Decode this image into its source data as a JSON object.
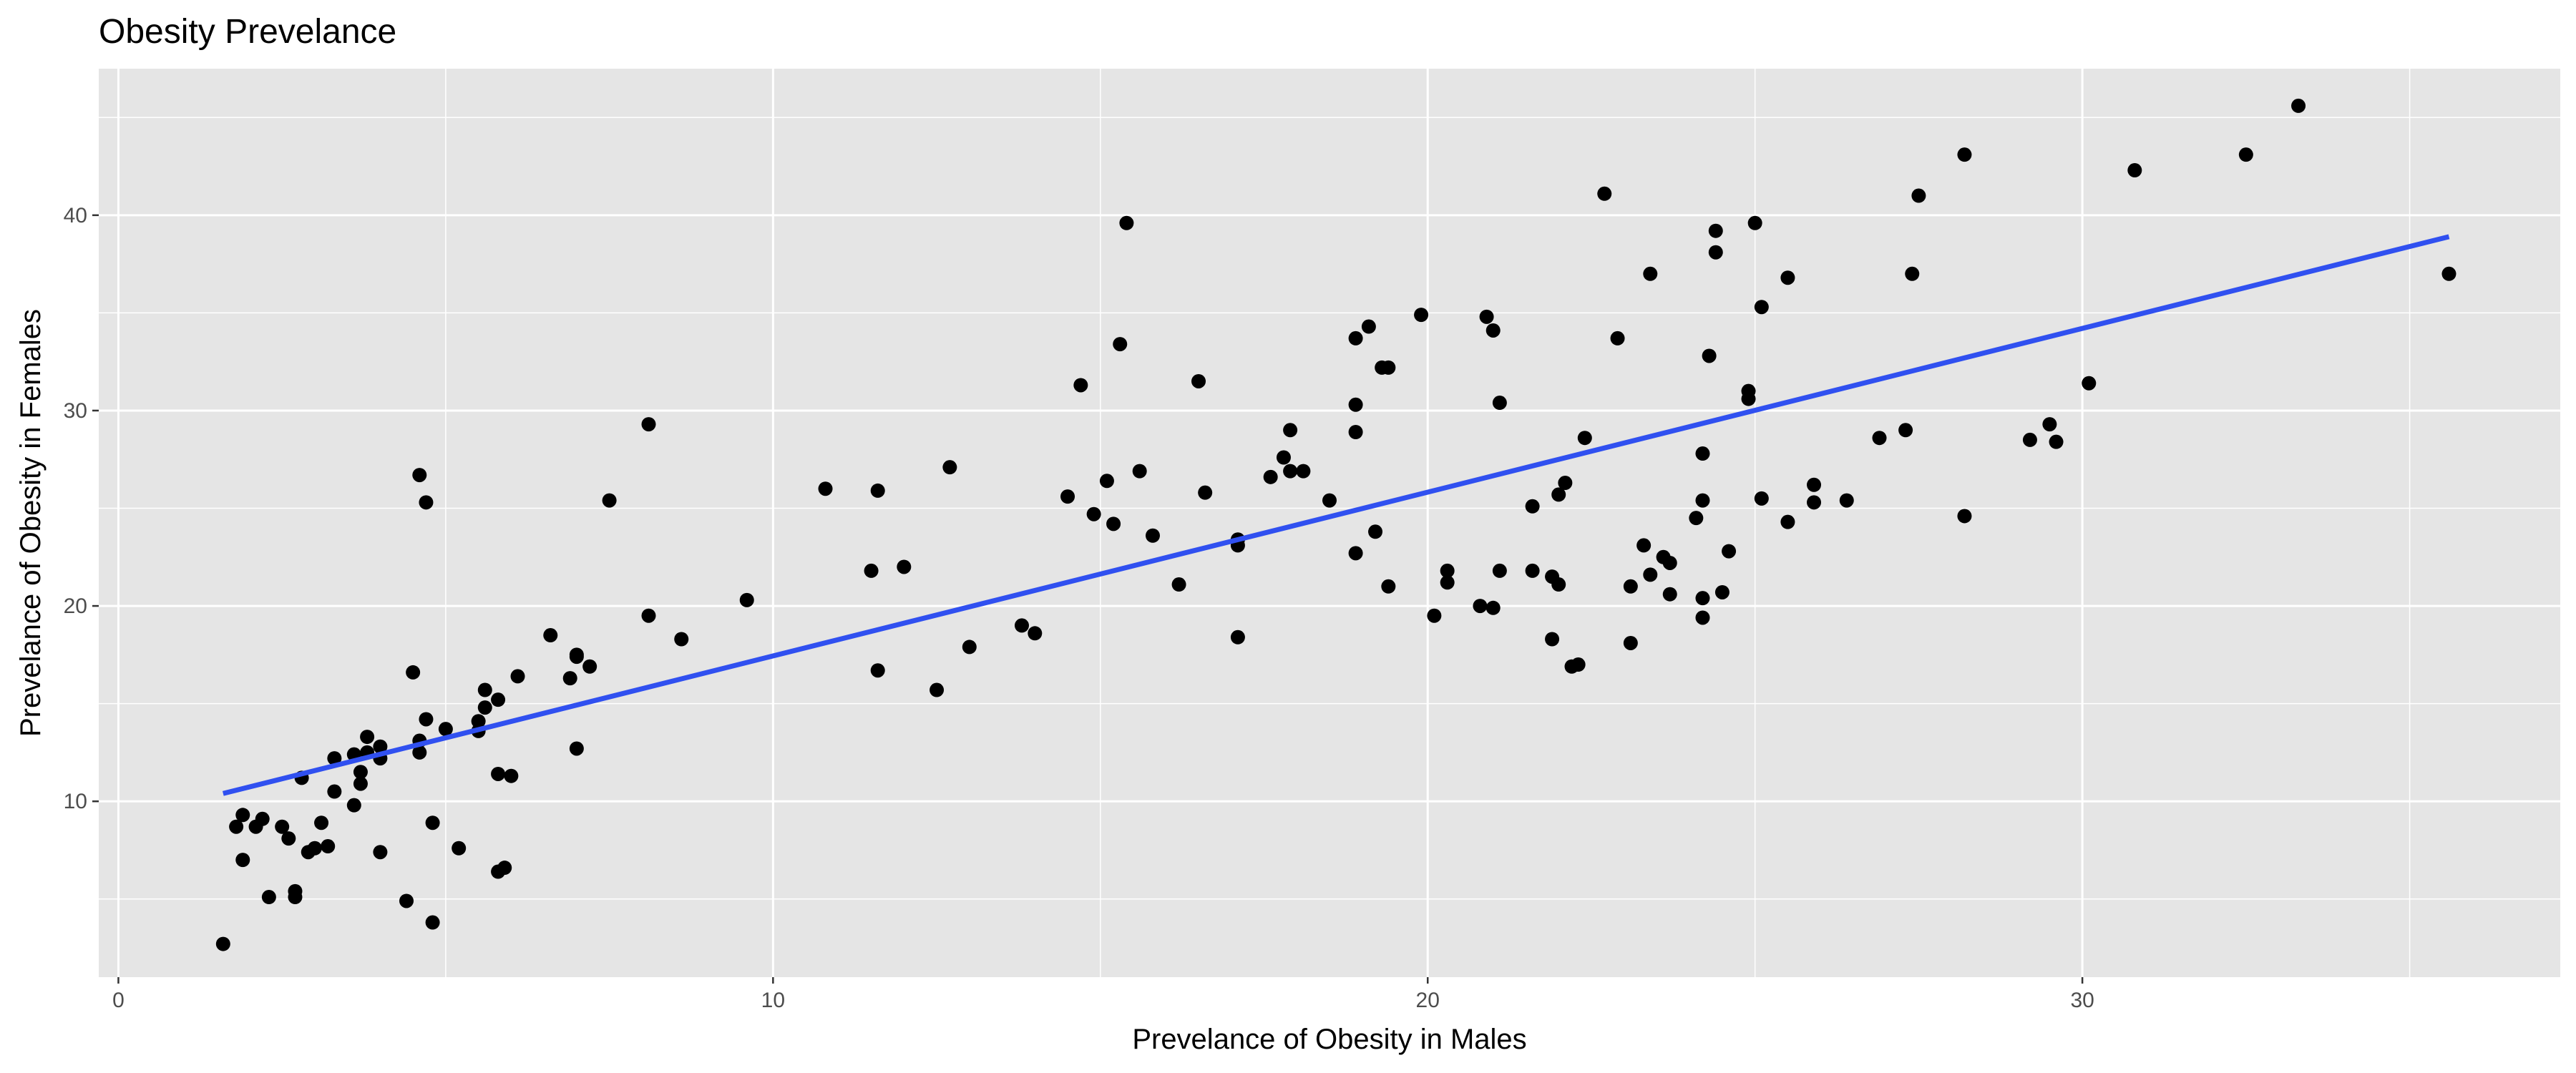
{
  "chart_data": {
    "type": "scatter",
    "title": "Obesity Prevelance",
    "xlabel": "Prevelance of Obesity in Males",
    "ylabel": "Prevelance of Obesity in Females",
    "xlim": [
      -0.3,
      37.3
    ],
    "ylim": [
      1.0,
      47.5
    ],
    "xticks": [
      0,
      10,
      20,
      30
    ],
    "xtick_labels": [
      "0",
      "10",
      "20",
      "30"
    ],
    "yticks": [
      10,
      20,
      30,
      40
    ],
    "ytick_labels": [
      "10",
      "20",
      "30",
      "40"
    ],
    "grid": true,
    "legend": "none",
    "colors": {
      "panel": "#e5e5e5",
      "grid": "#ffffff",
      "points": "#000000",
      "trend": "#3050f0"
    },
    "trend_line": {
      "x": [
        1.6,
        35.6
      ],
      "y": [
        10.4,
        38.9
      ]
    },
    "points": [
      [
        1.6,
        2.7
      ],
      [
        1.8,
        8.7
      ],
      [
        1.9,
        7.0
      ],
      [
        1.9,
        9.3
      ],
      [
        2.1,
        8.7
      ],
      [
        2.2,
        9.1
      ],
      [
        2.3,
        5.1
      ],
      [
        2.5,
        8.7
      ],
      [
        2.6,
        8.1
      ],
      [
        2.7,
        5.4
      ],
      [
        2.7,
        5.1
      ],
      [
        2.8,
        11.2
      ],
      [
        2.9,
        7.4
      ],
      [
        3.0,
        7.6
      ],
      [
        3.1,
        8.9
      ],
      [
        3.2,
        7.7
      ],
      [
        3.3,
        12.2
      ],
      [
        3.3,
        10.5
      ],
      [
        3.6,
        9.8
      ],
      [
        3.6,
        12.4
      ],
      [
        3.7,
        11.5
      ],
      [
        3.7,
        10.9
      ],
      [
        3.8,
        12.5
      ],
      [
        3.8,
        13.3
      ],
      [
        4.0,
        12.2
      ],
      [
        4.0,
        12.8
      ],
      [
        4.0,
        7.4
      ],
      [
        4.4,
        4.9
      ],
      [
        4.5,
        16.6
      ],
      [
        4.6,
        13.1
      ],
      [
        4.6,
        12.5
      ],
      [
        4.6,
        26.7
      ],
      [
        4.7,
        25.3
      ],
      [
        4.7,
        14.2
      ],
      [
        4.8,
        8.9
      ],
      [
        4.8,
        3.8
      ],
      [
        5.0,
        13.7
      ],
      [
        5.2,
        7.6
      ],
      [
        5.5,
        13.6
      ],
      [
        5.5,
        14.1
      ],
      [
        5.6,
        15.7
      ],
      [
        5.6,
        14.8
      ],
      [
        5.8,
        11.4
      ],
      [
        5.8,
        6.4
      ],
      [
        5.8,
        15.2
      ],
      [
        5.9,
        6.6
      ],
      [
        6.0,
        11.3
      ],
      [
        6.1,
        16.4
      ],
      [
        6.6,
        18.5
      ],
      [
        6.9,
        16.3
      ],
      [
        7.0,
        17.4
      ],
      [
        7.0,
        12.7
      ],
      [
        7.0,
        17.5
      ],
      [
        7.2,
        16.9
      ],
      [
        7.5,
        25.4
      ],
      [
        8.1,
        29.3
      ],
      [
        8.1,
        19.5
      ],
      [
        8.6,
        18.3
      ],
      [
        9.6,
        20.3
      ],
      [
        10.8,
        26.0
      ],
      [
        11.5,
        21.8
      ],
      [
        11.6,
        25.9
      ],
      [
        11.6,
        16.7
      ],
      [
        12.0,
        22.0
      ],
      [
        12.5,
        15.7
      ],
      [
        12.7,
        27.1
      ],
      [
        13.0,
        17.9
      ],
      [
        13.8,
        19.0
      ],
      [
        14.0,
        18.6
      ],
      [
        14.5,
        25.6
      ],
      [
        14.7,
        31.3
      ],
      [
        14.9,
        24.7
      ],
      [
        15.1,
        26.4
      ],
      [
        15.2,
        24.2
      ],
      [
        15.3,
        33.4
      ],
      [
        15.4,
        39.6
      ],
      [
        15.6,
        26.9
      ],
      [
        15.8,
        23.6
      ],
      [
        16.2,
        21.1
      ],
      [
        16.5,
        31.5
      ],
      [
        16.6,
        25.8
      ],
      [
        17.1,
        18.4
      ],
      [
        17.1,
        23.1
      ],
      [
        17.1,
        23.4
      ],
      [
        17.6,
        26.6
      ],
      [
        17.8,
        27.6
      ],
      [
        17.9,
        29.0
      ],
      [
        17.9,
        26.9
      ],
      [
        18.1,
        26.9
      ],
      [
        18.5,
        25.4
      ],
      [
        18.9,
        33.7
      ],
      [
        18.9,
        30.3
      ],
      [
        18.9,
        28.9
      ],
      [
        18.9,
        22.7
      ],
      [
        19.1,
        34.3
      ],
      [
        19.2,
        23.8
      ],
      [
        19.3,
        32.2
      ],
      [
        19.4,
        32.2
      ],
      [
        19.4,
        21.0
      ],
      [
        19.9,
        34.9
      ],
      [
        20.1,
        19.5
      ],
      [
        20.3,
        21.8
      ],
      [
        20.3,
        21.2
      ],
      [
        20.8,
        20.0
      ],
      [
        20.9,
        34.8
      ],
      [
        21.0,
        34.1
      ],
      [
        21.0,
        19.9
      ],
      [
        21.1,
        30.4
      ],
      [
        21.1,
        21.8
      ],
      [
        21.6,
        25.1
      ],
      [
        21.6,
        21.8
      ],
      [
        21.9,
        21.5
      ],
      [
        21.9,
        18.3
      ],
      [
        22.0,
        25.7
      ],
      [
        22.0,
        21.1
      ],
      [
        22.1,
        26.3
      ],
      [
        22.2,
        16.9
      ],
      [
        22.3,
        17.0
      ],
      [
        22.4,
        28.6
      ],
      [
        22.7,
        41.1
      ],
      [
        22.9,
        33.7
      ],
      [
        23.1,
        18.1
      ],
      [
        23.1,
        21.0
      ],
      [
        23.3,
        23.1
      ],
      [
        23.4,
        37.0
      ],
      [
        23.4,
        21.6
      ],
      [
        23.6,
        22.5
      ],
      [
        23.7,
        20.6
      ],
      [
        23.7,
        22.2
      ],
      [
        24.1,
        24.5
      ],
      [
        24.2,
        20.4
      ],
      [
        24.2,
        19.4
      ],
      [
        24.2,
        27.8
      ],
      [
        24.2,
        25.4
      ],
      [
        24.3,
        32.8
      ],
      [
        24.4,
        39.2
      ],
      [
        24.4,
        38.1
      ],
      [
        24.5,
        20.7
      ],
      [
        24.6,
        22.8
      ],
      [
        24.9,
        31.0
      ],
      [
        24.9,
        30.6
      ],
      [
        25.0,
        39.6
      ],
      [
        25.1,
        35.3
      ],
      [
        25.1,
        25.5
      ],
      [
        25.5,
        36.8
      ],
      [
        25.5,
        24.3
      ],
      [
        25.9,
        25.3
      ],
      [
        25.9,
        26.2
      ],
      [
        26.4,
        25.4
      ],
      [
        26.9,
        28.6
      ],
      [
        27.3,
        29.0
      ],
      [
        27.4,
        37.0
      ],
      [
        27.5,
        41.0
      ],
      [
        28.2,
        43.1
      ],
      [
        28.2,
        24.6
      ],
      [
        29.2,
        28.5
      ],
      [
        29.5,
        29.3
      ],
      [
        29.6,
        28.4
      ],
      [
        30.1,
        31.4
      ],
      [
        30.8,
        42.3
      ],
      [
        32.5,
        43.1
      ],
      [
        33.3,
        45.6
      ],
      [
        35.6,
        37.0
      ]
    ]
  }
}
